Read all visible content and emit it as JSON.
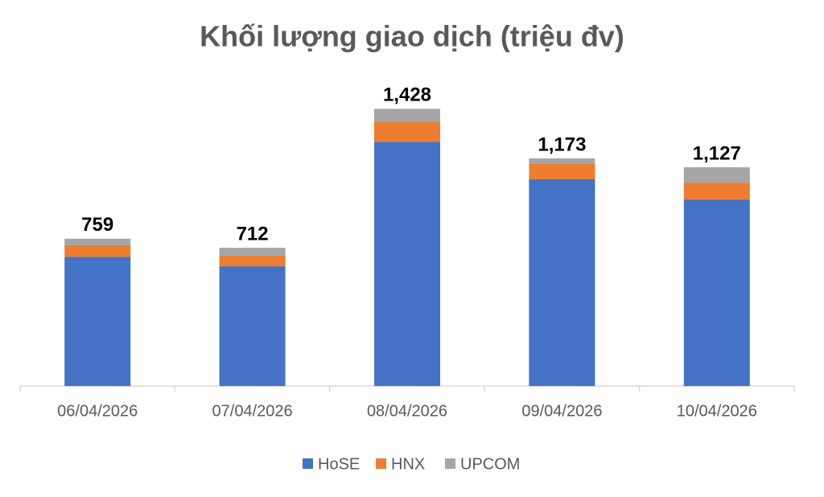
{
  "chart_data": {
    "type": "stacked_bar",
    "title": "Khối lượng giao dịch (triệu đv)",
    "categories": [
      "06/04/2026",
      "07/04/2026",
      "08/04/2026",
      "09/04/2026",
      "10/04/2026"
    ],
    "series": [
      {
        "name": "HoSE",
        "color": "#4472c4",
        "values": [
          666,
          617,
          1258,
          1065,
          961
        ]
      },
      {
        "name": "HNX",
        "color": "#ed7d31",
        "values": [
          60,
          54,
          104,
          79,
          87
        ]
      },
      {
        "name": "UPCOM",
        "color": "#a5a5a5",
        "values": [
          33,
          41,
          66,
          29,
          79
        ]
      }
    ],
    "totals": {
      "values": [
        759,
        712,
        1428,
        1173,
        1127
      ],
      "value_labels": [
        "759",
        "712",
        "1,428",
        "1,173",
        "1,127"
      ]
    },
    "ylim": [
      0,
      1500
    ],
    "legend": "bottom"
  }
}
